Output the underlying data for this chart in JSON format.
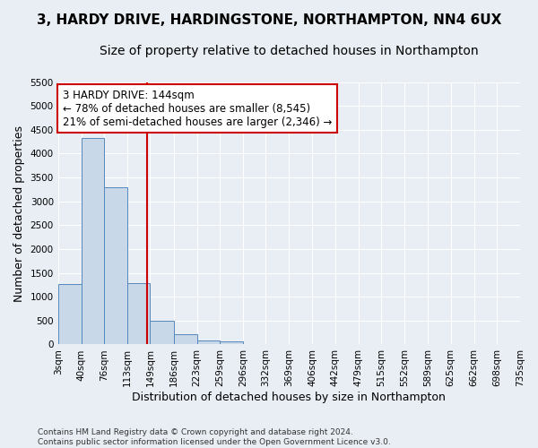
{
  "title_line1": "3, HARDY DRIVE, HARDINGSTONE, NORTHAMPTON, NN4 6UX",
  "title_line2": "Size of property relative to detached houses in Northampton",
  "xlabel": "Distribution of detached houses by size in Northampton",
  "ylabel": "Number of detached properties",
  "footnote": "Contains HM Land Registry data © Crown copyright and database right 2024.\nContains public sector information licensed under the Open Government Licence v3.0.",
  "bin_edges": [
    3,
    40,
    76,
    113,
    149,
    186,
    223,
    259,
    296,
    332,
    369,
    406,
    442,
    479,
    515,
    552,
    589,
    625,
    662,
    698,
    735
  ],
  "bar_heights": [
    1270,
    4330,
    3300,
    1280,
    490,
    210,
    90,
    60,
    0,
    0,
    0,
    0,
    0,
    0,
    0,
    0,
    0,
    0,
    0,
    0
  ],
  "bar_color": "#c8d8e8",
  "bar_edge_color": "#5588bb",
  "property_size": 144,
  "red_line_color": "#cc0000",
  "annotation_text": "3 HARDY DRIVE: 144sqm\n← 78% of detached houses are smaller (8,545)\n21% of semi-detached houses are larger (2,346) →",
  "annotation_box_color": "white",
  "annotation_box_edge_color": "#cc0000",
  "ylim": [
    0,
    5500
  ],
  "yticks": [
    0,
    500,
    1000,
    1500,
    2000,
    2500,
    3000,
    3500,
    4000,
    4500,
    5000,
    5500
  ],
  "background_color": "#e8eef4",
  "grid_color": "white",
  "title_fontsize": 11,
  "subtitle_fontsize": 10,
  "axis_label_fontsize": 9,
  "tick_fontsize": 7.5,
  "annotation_fontsize": 8.5
}
